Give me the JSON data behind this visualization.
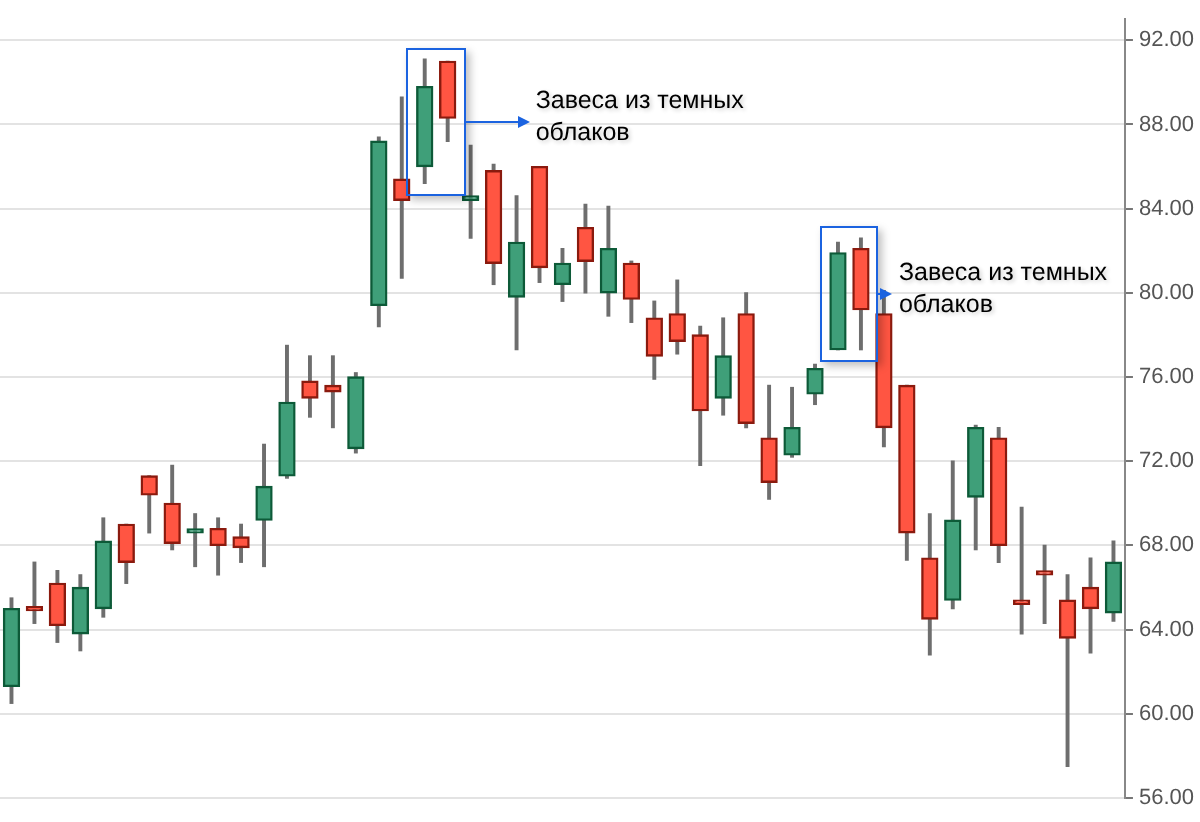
{
  "chart_data": {
    "type": "candlestick",
    "categories": [
      null,
      null,
      null,
      null,
      null,
      null,
      null,
      null,
      null,
      null,
      null,
      null,
      null,
      null,
      null,
      null,
      null,
      null,
      null,
      null,
      null,
      null,
      null,
      null,
      null,
      null,
      null,
      null,
      null,
      null,
      null,
      null,
      null,
      null,
      null,
      null,
      null,
      null,
      null,
      null,
      null,
      null,
      null,
      null,
      null,
      null,
      null,
      null,
      null
    ],
    "ohlc": [
      [
        61.3,
        65.5,
        60.5,
        65.0
      ],
      [
        65.0,
        67.2,
        64.3,
        64.9
      ],
      [
        66.2,
        66.8,
        63.4,
        64.2
      ],
      [
        63.8,
        66.6,
        63.0,
        66.0
      ],
      [
        65.0,
        69.3,
        64.6,
        68.2
      ],
      [
        69.0,
        69.0,
        66.2,
        67.2
      ],
      [
        71.3,
        71.3,
        68.6,
        70.4
      ],
      [
        70.0,
        71.8,
        67.8,
        68.1
      ],
      [
        68.6,
        69.5,
        67.0,
        68.6
      ],
      [
        68.8,
        69.3,
        66.6,
        68.0
      ],
      [
        68.4,
        69.0,
        67.2,
        67.9
      ],
      [
        69.2,
        72.8,
        67.0,
        70.8
      ],
      [
        71.3,
        77.5,
        71.2,
        74.8
      ],
      [
        75.8,
        77.0,
        74.1,
        75.0
      ],
      [
        75.6,
        77.0,
        73.6,
        75.3
      ],
      [
        72.6,
        76.2,
        72.4,
        76.0
      ],
      [
        79.4,
        87.4,
        78.4,
        87.2
      ],
      [
        85.4,
        89.3,
        80.7,
        84.4
      ],
      [
        86.0,
        91.1,
        85.2,
        89.8
      ],
      [
        91.0,
        91.0,
        87.2,
        88.3
      ],
      [
        84.4,
        87.0,
        82.6,
        84.6
      ],
      [
        85.8,
        86.1,
        80.4,
        81.4
      ],
      [
        79.8,
        84.6,
        77.3,
        82.4
      ],
      [
        86.0,
        86.0,
        80.5,
        81.2
      ],
      [
        80.4,
        82.1,
        79.6,
        81.4
      ],
      [
        83.1,
        84.2,
        80.0,
        81.5
      ],
      [
        80.0,
        84.1,
        78.9,
        82.1
      ],
      [
        81.4,
        81.5,
        78.6,
        79.7
      ],
      [
        78.8,
        79.6,
        75.9,
        77.0
      ],
      [
        79.0,
        80.6,
        77.1,
        77.7
      ],
      [
        78.0,
        78.4,
        71.8,
        74.4
      ],
      [
        75.0,
        78.8,
        74.2,
        77.0
      ],
      [
        79.0,
        80.0,
        73.6,
        73.8
      ],
      [
        73.1,
        75.6,
        70.2,
        71.0
      ],
      [
        72.3,
        75.5,
        72.2,
        73.6
      ],
      [
        75.2,
        76.6,
        74.7,
        76.4
      ],
      [
        77.3,
        82.4,
        77.3,
        81.9
      ],
      [
        82.1,
        82.6,
        77.3,
        79.2
      ],
      [
        79.0,
        80.1,
        72.7,
        73.6
      ],
      [
        75.6,
        75.6,
        67.3,
        68.6
      ],
      [
        67.4,
        69.5,
        62.8,
        64.5
      ],
      [
        65.4,
        72.0,
        65.0,
        69.2
      ],
      [
        70.3,
        73.7,
        67.8,
        73.6
      ],
      [
        73.1,
        73.6,
        67.2,
        68.0
      ],
      [
        65.4,
        69.8,
        63.8,
        65.2
      ],
      [
        66.7,
        68.0,
        64.3,
        66.6
      ],
      [
        65.4,
        66.6,
        57.5,
        63.6
      ],
      [
        66.0,
        67.4,
        62.9,
        65.0
      ],
      [
        64.8,
        68.2,
        64.4,
        67.2
      ]
    ],
    "ylim": [
      56,
      93
    ],
    "yticks": [
      {
        "value": 56,
        "label": "56.00"
      },
      {
        "value": 60,
        "label": "60.00"
      },
      {
        "value": 64,
        "label": "64.00"
      },
      {
        "value": 68,
        "label": "68.00"
      },
      {
        "value": 72,
        "label": "72.00"
      },
      {
        "value": 76,
        "label": "76.00"
      },
      {
        "value": 80,
        "label": "80.00"
      },
      {
        "value": 84,
        "label": "84.00"
      },
      {
        "value": 88,
        "label": "88.00"
      },
      {
        "value": 92,
        "label": "92.00"
      }
    ],
    "grid": "y",
    "legend": false,
    "annotations": [
      "Завеса из темных облаков",
      "Завеса из темных облаков"
    ]
  }
}
